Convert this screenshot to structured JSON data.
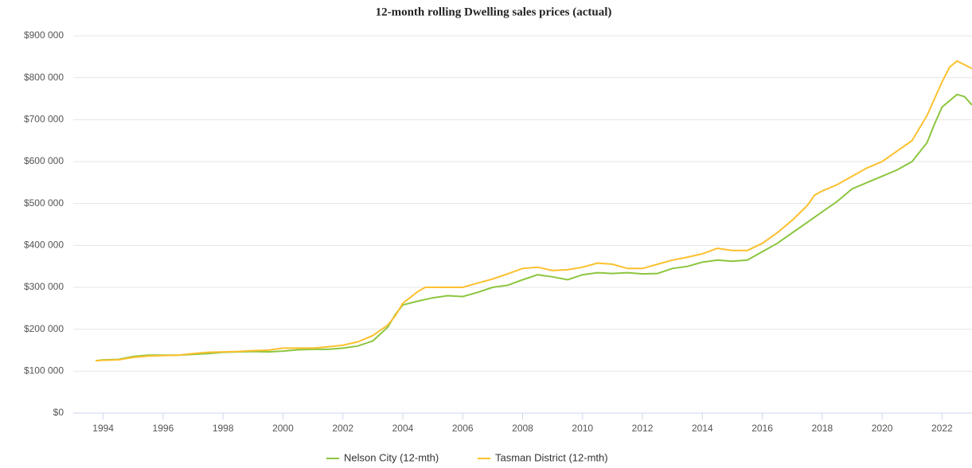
{
  "chart_data": {
    "type": "line",
    "title": "12-month rolling Dwelling sales prices (actual)",
    "xlim": [
      1993,
      2023
    ],
    "xticks": [
      1994,
      1996,
      1998,
      2000,
      2002,
      2004,
      2006,
      2008,
      2010,
      2012,
      2014,
      2016,
      2018,
      2020,
      2022
    ],
    "ylim": [
      0,
      900000
    ],
    "yticks": [
      {
        "value": 0,
        "label": "$0"
      },
      {
        "value": 100000,
        "label": "$100 000"
      },
      {
        "value": 200000,
        "label": "$200 000"
      },
      {
        "value": 300000,
        "label": "$300 000"
      },
      {
        "value": 400000,
        "label": "$400 000"
      },
      {
        "value": 500000,
        "label": "$500 000"
      },
      {
        "value": 600000,
        "label": "$600 000"
      },
      {
        "value": 700000,
        "label": "$700 000"
      },
      {
        "value": 800000,
        "label": "$800 000"
      },
      {
        "value": 900000,
        "label": "$900 000"
      }
    ],
    "grid": true,
    "legend": "bottom",
    "series": [
      {
        "name": "Nelson City (12-mth)",
        "color": "#8cc63f",
        "x": [
          1993.75,
          1994,
          1994.5,
          1995,
          1995.5,
          1996,
          1996.5,
          1997,
          1997.5,
          1998,
          1998.5,
          1999,
          1999.5,
          2000,
          2000.5,
          2001,
          2001.5,
          2002,
          2002.5,
          2003,
          2003.5,
          2003.75,
          2004,
          2004.5,
          2005,
          2005.5,
          2006,
          2006.5,
          2007,
          2007.5,
          2008,
          2008.5,
          2009,
          2009.5,
          2010,
          2010.5,
          2011,
          2011.5,
          2012,
          2012.5,
          2013,
          2013.5,
          2014,
          2014.5,
          2015,
          2015.5,
          2016,
          2016.5,
          2017,
          2017.5,
          2018,
          2018.5,
          2019,
          2019.5,
          2020,
          2020.5,
          2021,
          2021.5,
          2021.75,
          2022,
          2022.5,
          2022.75,
          2023
        ],
        "values": [
          125000,
          127000,
          128000,
          135000,
          138000,
          138000,
          138000,
          140000,
          142000,
          145000,
          146000,
          147000,
          146000,
          148000,
          151000,
          152000,
          152000,
          155000,
          160000,
          172000,
          205000,
          235000,
          258000,
          267000,
          275000,
          280000,
          278000,
          288000,
          300000,
          305000,
          318000,
          330000,
          325000,
          318000,
          330000,
          335000,
          333000,
          335000,
          332000,
          333000,
          345000,
          350000,
          360000,
          365000,
          362000,
          365000,
          385000,
          405000,
          430000,
          455000,
          480000,
          505000,
          535000,
          550000,
          565000,
          580000,
          600000,
          645000,
          690000,
          730000,
          760000,
          755000,
          735000
        ]
      },
      {
        "name": "Tasman District (12-mth)",
        "color": "#fcc02e",
        "x": [
          1993.75,
          1994,
          1994.5,
          1995,
          1995.5,
          1996,
          1996.5,
          1997,
          1997.5,
          1998,
          1998.5,
          1999,
          1999.5,
          2000,
          2000.5,
          2001,
          2001.5,
          2002,
          2002.5,
          2003,
          2003.5,
          2003.75,
          2004,
          2004.5,
          2004.75,
          2005,
          2005.5,
          2006,
          2006.5,
          2007,
          2007.5,
          2008,
          2008.5,
          2009,
          2009.5,
          2010,
          2010.5,
          2011,
          2011.5,
          2012,
          2012.5,
          2013,
          2013.5,
          2014,
          2014.5,
          2015,
          2015.5,
          2016,
          2016.5,
          2017,
          2017.5,
          2017.75,
          2018,
          2018.5,
          2019,
          2019.5,
          2020,
          2020.5,
          2021,
          2021.5,
          2022,
          2022.25,
          2022.5,
          2023
        ],
        "values": [
          125000,
          126000,
          127000,
          133000,
          136000,
          137000,
          138000,
          142000,
          145000,
          146000,
          147000,
          149000,
          150000,
          155000,
          155000,
          155000,
          158000,
          162000,
          170000,
          185000,
          210000,
          232000,
          262000,
          290000,
          300000,
          300000,
          300000,
          300000,
          310000,
          320000,
          332000,
          345000,
          348000,
          340000,
          342000,
          348000,
          358000,
          355000,
          345000,
          345000,
          355000,
          365000,
          372000,
          380000,
          393000,
          388000,
          388000,
          405000,
          430000,
          460000,
          495000,
          520000,
          530000,
          545000,
          565000,
          585000,
          600000,
          625000,
          650000,
          710000,
          790000,
          825000,
          840000,
          822000
        ]
      }
    ]
  }
}
